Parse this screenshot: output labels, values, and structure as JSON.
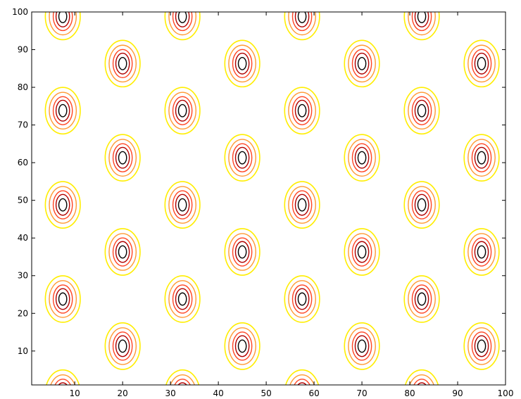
{
  "chart_data": {
    "type": "contour",
    "title": "",
    "xlabel": "",
    "ylabel": "",
    "xlim": [
      1,
      100
    ],
    "ylim": [
      1,
      100
    ],
    "xticks": [
      10,
      20,
      30,
      40,
      50,
      60,
      70,
      80,
      90,
      100
    ],
    "yticks": [
      10,
      20,
      30,
      40,
      50,
      60,
      70,
      80,
      90,
      100
    ],
    "grid": false,
    "legend": "none",
    "contour_levels": [
      {
        "level": 1,
        "color": "#ffee00"
      },
      {
        "level": 2,
        "color": "#ff9933"
      },
      {
        "level": 3,
        "color": "#ff4422"
      },
      {
        "level": 4,
        "color": "#b00000"
      },
      {
        "level": 5,
        "color": "#000000"
      }
    ],
    "peak_rows": [
      {
        "y": 98.8,
        "x": [
          7.5,
          32.5,
          57.5,
          82.5
        ]
      },
      {
        "y": 86.3,
        "x": [
          20,
          45,
          70,
          95
        ]
      },
      {
        "y": 73.8,
        "x": [
          7.5,
          32.5,
          57.5,
          82.5
        ]
      },
      {
        "y": 61.3,
        "x": [
          20,
          45,
          70,
          95
        ]
      },
      {
        "y": 48.8,
        "x": [
          7.5,
          32.5,
          57.5,
          82.5
        ]
      },
      {
        "y": 36.3,
        "x": [
          20,
          45,
          70,
          95
        ]
      },
      {
        "y": 23.8,
        "x": [
          7.5,
          32.5,
          57.5,
          82.5
        ]
      },
      {
        "y": 11.3,
        "x": [
          20,
          45,
          70,
          95
        ]
      },
      {
        "y": -1.2,
        "x": [
          7.5,
          32.5,
          57.5,
          82.5
        ]
      }
    ],
    "peak_spread": {
      "x": 3.7,
      "y": 6.0
    }
  }
}
